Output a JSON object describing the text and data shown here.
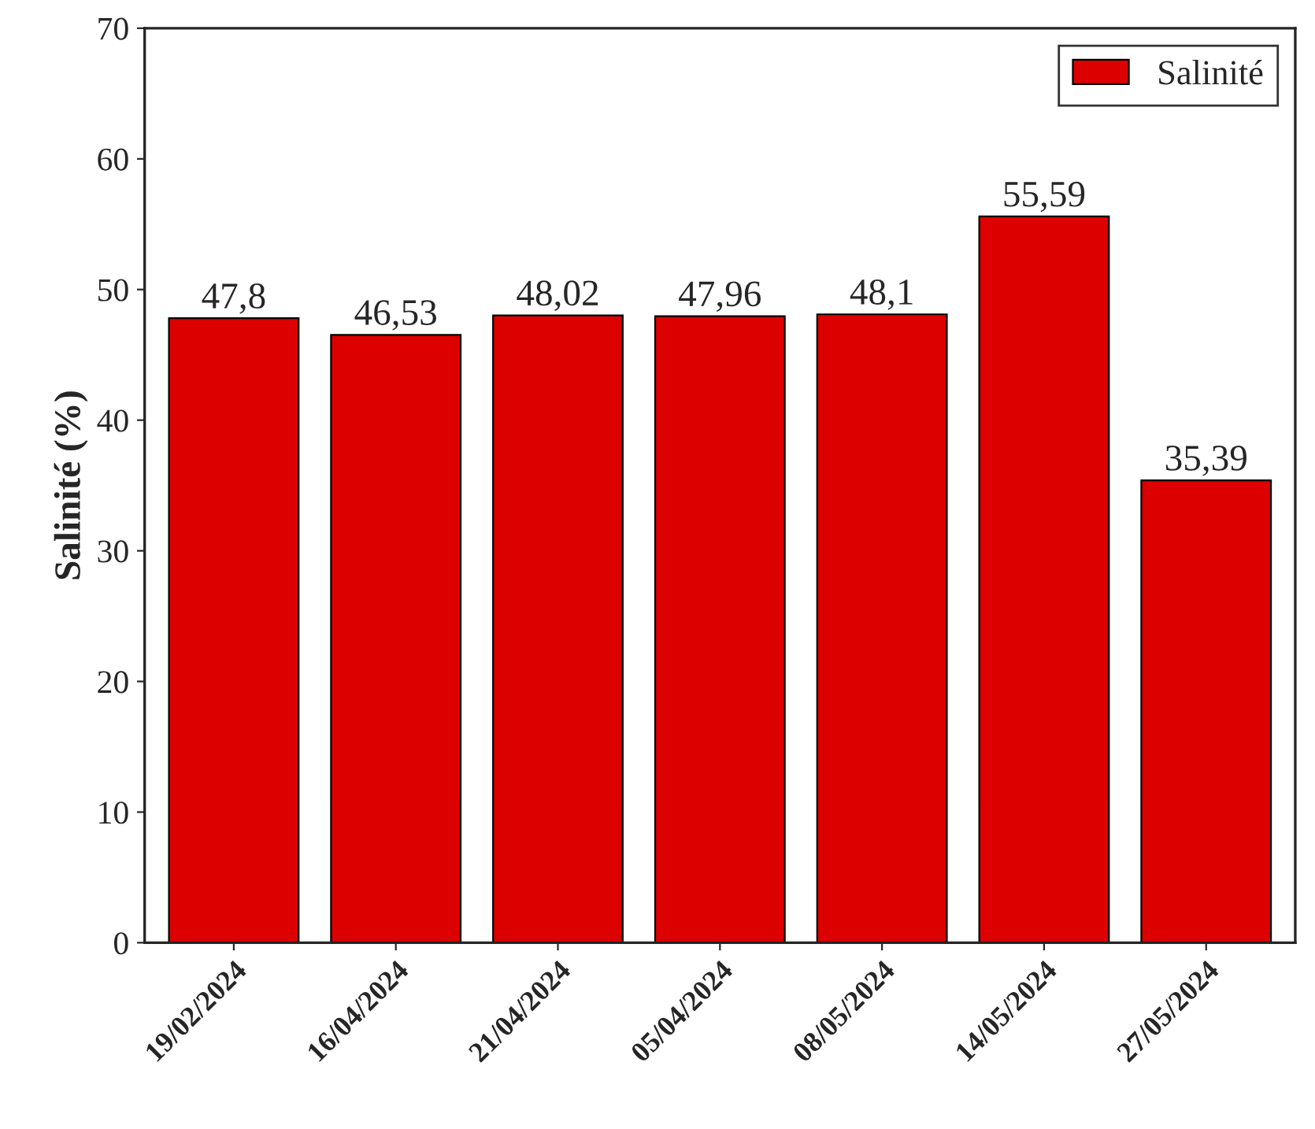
{
  "chart_data": {
    "type": "bar",
    "ylabel": "Salinité (%)",
    "categories": [
      "19/02/2024",
      "16/04/2024",
      "21/04/2024",
      "05/04/2024",
      "08/05/2024",
      "14/05/2024",
      "27/05/2024"
    ],
    "series": [
      {
        "name": "Salinité",
        "color": "#dd0000",
        "values": [
          47.8,
          46.53,
          48.02,
          47.96,
          48.1,
          55.59,
          35.39
        ],
        "value_labels": [
          "47,8",
          "46,53",
          "48,02",
          "47,96",
          "48,1",
          "55,59",
          "35,39"
        ]
      }
    ],
    "ylim": [
      0,
      70
    ],
    "yticks": [
      0,
      10,
      20,
      30,
      40,
      50,
      60,
      70
    ],
    "grid": false,
    "legend": "top right"
  }
}
